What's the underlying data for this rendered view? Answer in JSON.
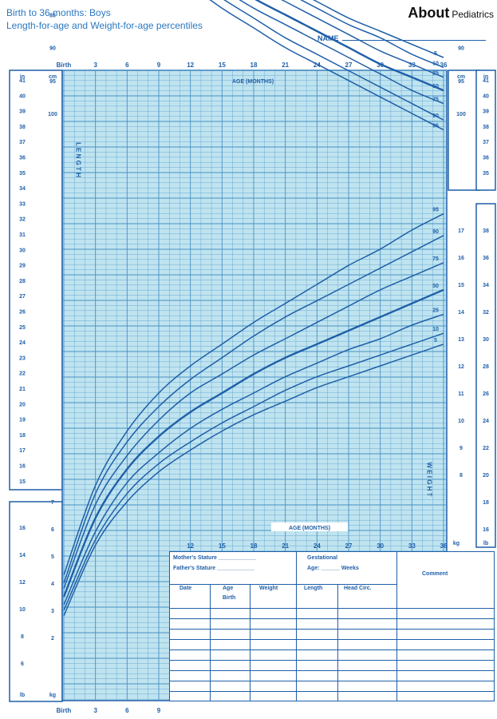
{
  "header": {
    "title_line1": "Birth to 36 months: Boys",
    "title_line2": "Length-for-age and Weight-for-age percentiles",
    "brand_about": "About",
    "brand_section": "Pediatrics",
    "name_label": "NAME"
  },
  "colors": {
    "grid_bg": "#bfe4f0",
    "curve": "#1f5fa8",
    "text": "#1f5fa8",
    "grid_line": "#4a90c4"
  },
  "chart_data": {
    "type": "line",
    "age_axis_label": "AGE (MONTHS)",
    "age_ticks_top": [
      "Birth",
      "3",
      "6",
      "9",
      "12",
      "15",
      "18",
      "21",
      "24",
      "27",
      "30",
      "33",
      "36"
    ],
    "age_ticks_bottom": [
      "Birth",
      "3",
      "6",
      "9"
    ],
    "age_ticks_lower": [
      "12",
      "15",
      "18",
      "21",
      "24",
      "27",
      "30",
      "33",
      "36"
    ],
    "length_label": "L E N G T H",
    "weight_label": "W E I G H T",
    "length_cm_ticks": [
      "100",
      "95",
      "90",
      "85",
      "80",
      "75",
      "70",
      "65",
      "60",
      "55",
      "50",
      "45"
    ],
    "length_in_ticks": [
      "41",
      "40",
      "39",
      "38",
      "37",
      "36",
      "35",
      "34",
      "33",
      "32",
      "31",
      "30",
      "29",
      "28",
      "27",
      "26",
      "25",
      "24",
      "23",
      "22",
      "21",
      "20",
      "19",
      "18",
      "17",
      "16",
      "15"
    ],
    "weight_kg_ticks_upper": [
      "17",
      "16",
      "15",
      "14",
      "13",
      "12",
      "11",
      "10",
      "9",
      "8"
    ],
    "weight_lb_ticks_upper": [
      "38",
      "36",
      "34",
      "32",
      "30",
      "28",
      "26",
      "24",
      "22",
      "20",
      "18",
      "16"
    ],
    "weight_kg_ticks_lower": [
      "7",
      "6",
      "5",
      "4",
      "3",
      "2"
    ],
    "weight_lb_ticks_lower": [
      "16",
      "14",
      "12",
      "10",
      "8",
      "6"
    ],
    "unit_cm": "cm",
    "unit_in": "in",
    "unit_kg": "kg",
    "unit_lb": "lb",
    "percentiles": [
      "95",
      "90",
      "75",
      "50",
      "25",
      "10",
      "5"
    ],
    "x_months": [
      0,
      3,
      6,
      9,
      12,
      15,
      18,
      21,
      24,
      27,
      30,
      33,
      36
    ],
    "length_series": [
      {
        "name": "95",
        "values": [
          54.0,
          65.0,
          72.0,
          76.5,
          80.5,
          84.0,
          87.0,
          90.0,
          92.5,
          95.0,
          97.5,
          100.0,
          102.5
        ]
      },
      {
        "name": "90",
        "values": [
          53.0,
          64.0,
          71.0,
          75.5,
          79.0,
          82.5,
          85.5,
          88.5,
          91.0,
          93.5,
          96.0,
          98.5,
          101.0
        ]
      },
      {
        "name": "75",
        "values": [
          51.5,
          62.5,
          69.0,
          73.5,
          77.5,
          81.0,
          84.0,
          86.5,
          89.0,
          91.5,
          94.0,
          96.5,
          98.5
        ]
      },
      {
        "name": "50",
        "values": [
          50.0,
          61.0,
          67.5,
          72.0,
          76.0,
          79.5,
          82.5,
          85.0,
          87.5,
          90.0,
          92.5,
          94.5,
          96.5
        ]
      },
      {
        "name": "25",
        "values": [
          48.5,
          59.5,
          66.0,
          70.5,
          74.5,
          77.5,
          80.5,
          83.0,
          85.5,
          88.0,
          90.5,
          92.5,
          94.5
        ]
      },
      {
        "name": "10",
        "values": [
          47.5,
          58.5,
          65.0,
          69.5,
          73.0,
          76.5,
          79.0,
          81.5,
          84.0,
          86.5,
          88.5,
          91.0,
          93.0
        ]
      },
      {
        "name": "5",
        "values": [
          46.5,
          57.5,
          64.0,
          68.5,
          72.0,
          75.5,
          78.0,
          80.5,
          83.0,
          85.5,
          87.5,
          89.5,
          91.5
        ]
      }
    ],
    "weight_series": [
      {
        "name": "95",
        "values": [
          4.3,
          7.6,
          9.6,
          11.0,
          12.0,
          12.8,
          13.6,
          14.3,
          15.0,
          15.7,
          16.3,
          17.0,
          17.6
        ]
      },
      {
        "name": "90",
        "values": [
          4.0,
          7.3,
          9.2,
          10.5,
          11.5,
          12.3,
          13.1,
          13.8,
          14.4,
          15.0,
          15.6,
          16.2,
          16.8
        ]
      },
      {
        "name": "75",
        "values": [
          3.8,
          6.9,
          8.7,
          10.0,
          11.0,
          11.7,
          12.4,
          13.0,
          13.6,
          14.2,
          14.8,
          15.3,
          15.8
        ]
      },
      {
        "name": "50",
        "values": [
          3.5,
          6.4,
          8.2,
          9.4,
          10.3,
          11.0,
          11.7,
          12.3,
          12.8,
          13.3,
          13.8,
          14.3,
          14.8
        ]
      },
      {
        "name": "25",
        "values": [
          3.2,
          5.9,
          7.7,
          8.8,
          9.7,
          10.4,
          11.0,
          11.6,
          12.1,
          12.6,
          13.0,
          13.5,
          13.9
        ]
      },
      {
        "name": "10",
        "values": [
          3.0,
          5.6,
          7.3,
          8.4,
          9.2,
          9.9,
          10.5,
          11.1,
          11.6,
          12.0,
          12.4,
          12.8,
          13.2
        ]
      },
      {
        "name": "5",
        "values": [
          2.8,
          5.4,
          7.0,
          8.1,
          8.9,
          9.6,
          10.2,
          10.7,
          11.2,
          11.6,
          12.0,
          12.4,
          12.8
        ]
      }
    ]
  },
  "record_table": {
    "mother_stature": "Mother's Stature",
    "father_stature": "Father's Stature",
    "gestational": "Gestational",
    "age_label": "Age:",
    "weeks_label": "Weeks",
    "comment": "Comment",
    "columns": [
      "Date",
      "Age",
      "Weight",
      "Length",
      "Head Circ."
    ],
    "birth_label": "Birth"
  }
}
